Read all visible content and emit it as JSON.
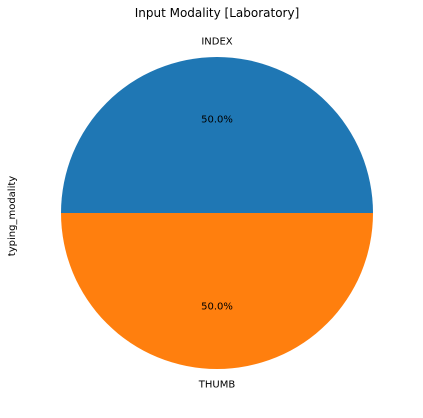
{
  "chart_data": {
    "type": "pie",
    "title": "Input Modality [Laboratory]",
    "ylabel": "typing_modality",
    "start_angle_deg": 0,
    "direction": "counterclockwise",
    "slices": [
      {
        "label": "INDEX",
        "value": 50.0,
        "percent_label": "50.0%",
        "color": "#1f77b4"
      },
      {
        "label": "THUMB",
        "value": 50.0,
        "percent_label": "50.0%",
        "color": "#ff7f0e"
      }
    ]
  }
}
